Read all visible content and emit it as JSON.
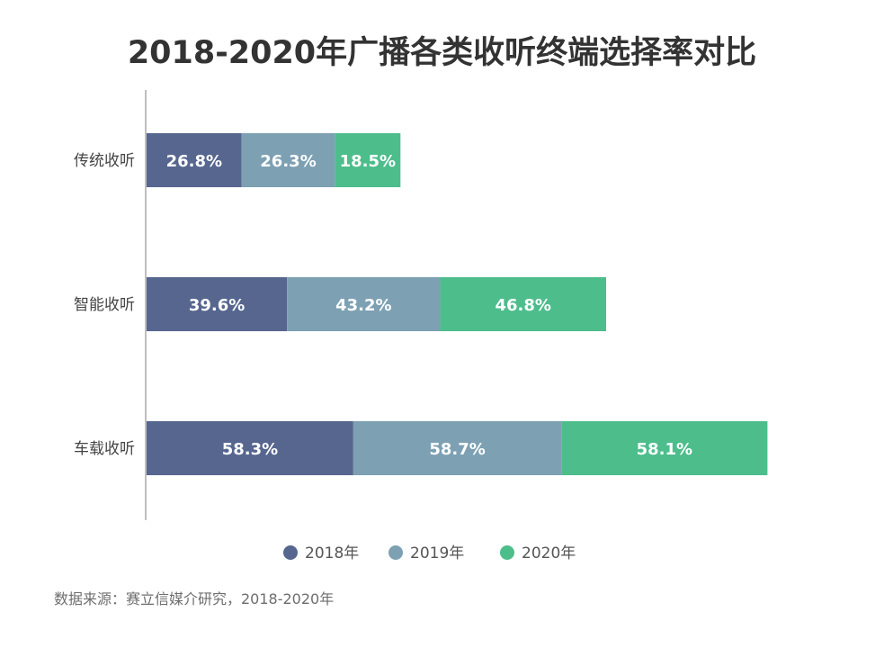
{
  "chart_data": {
    "type": "bar",
    "orientation": "horizontal",
    "stacked": true,
    "title": "2018-2020年广播各类收听终端选择率对比",
    "categories": [
      "传统收听",
      "智能收听",
      "车载收听"
    ],
    "series": [
      {
        "name": "2018年",
        "values": [
          26.8,
          39.6,
          58.3
        ],
        "labels": [
          "26.8%",
          "39.6%",
          "58.3%"
        ],
        "color": "#56668f"
      },
      {
        "name": "2019年",
        "values": [
          26.3,
          43.2,
          58.7
        ],
        "labels": [
          "26.3%",
          "43.2%",
          "58.7%"
        ],
        "color": "#7da0b3"
      },
      {
        "name": "2020年",
        "values": [
          18.5,
          46.8,
          58.1
        ],
        "labels": [
          "18.5%",
          "46.8%",
          "58.1%"
        ],
        "color": "#4dbd8c"
      }
    ],
    "xlim": [
      0,
      175
    ],
    "grid": false,
    "legend_position": "bottom"
  },
  "source": "数据来源：赛立信媒介研究，2018-2020年"
}
